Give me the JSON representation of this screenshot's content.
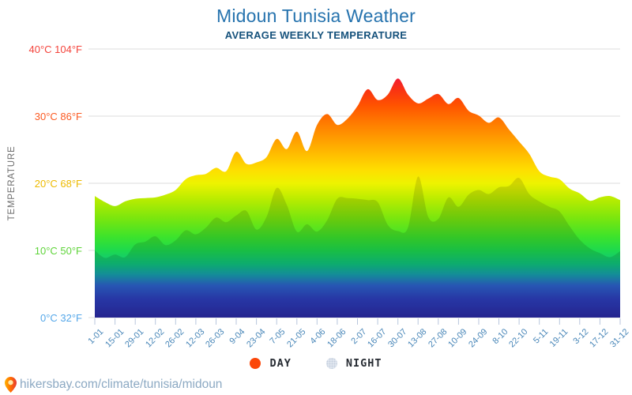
{
  "page": {
    "footer": {
      "url_text": "hikersbay.com/climate/tunisia/midoun"
    }
  },
  "chart_data": {
    "type": "area",
    "title": "Midoun Tunisia Weather",
    "subtitle": "AVERAGE WEEKLY TEMPERATURE",
    "ylabel": "TEMPERATURE",
    "ylim": [
      0,
      40
    ],
    "grid": true,
    "legend_position": "bottom",
    "legend": [
      {
        "label": "DAY",
        "color": "#fb4709"
      },
      {
        "label": "NIGHT",
        "color": "#e7ecf3"
      }
    ],
    "y_ticks": [
      {
        "value": 40,
        "label": "40°C 104°F",
        "color": "#f4433b"
      },
      {
        "value": 30,
        "label": "30°C 86°F",
        "color": "#fb5a22"
      },
      {
        "value": 20,
        "label": "20°C 68°F",
        "color": "#edba00"
      },
      {
        "value": 10,
        "label": "10°C 50°F",
        "color": "#5fd43a"
      },
      {
        "value": 0,
        "label": "0°C 32°F",
        "color": "#54a7e9"
      }
    ],
    "x_tick_labels": [
      "1-01",
      "15-01",
      "29-01",
      "12-02",
      "26-02",
      "12-03",
      "26-03",
      "9-04",
      "23-04",
      "7-05",
      "21-05",
      "4-06",
      "18-06",
      "2-07",
      "16-07",
      "30-07",
      "13-08",
      "27-08",
      "10-09",
      "24-09",
      "8-10",
      "22-10",
      "5-11",
      "19-11",
      "3-12",
      "17-12",
      "31-12"
    ],
    "x": [
      "1-01",
      "8-01",
      "15-01",
      "22-01",
      "29-01",
      "5-02",
      "12-02",
      "19-02",
      "26-02",
      "5-03",
      "12-03",
      "19-03",
      "26-03",
      "2-04",
      "9-04",
      "16-04",
      "23-04",
      "30-04",
      "7-05",
      "14-05",
      "21-05",
      "28-05",
      "4-06",
      "11-06",
      "18-06",
      "25-06",
      "2-07",
      "9-07",
      "16-07",
      "23-07",
      "30-07",
      "6-08",
      "13-08",
      "20-08",
      "27-08",
      "3-09",
      "10-09",
      "17-09",
      "24-09",
      "1-10",
      "8-10",
      "15-10",
      "22-10",
      "29-10",
      "5-11",
      "12-11",
      "19-11",
      "26-11",
      "3-12",
      "10-12",
      "17-12",
      "24-12",
      "31-12"
    ],
    "series": [
      {
        "name": "DAY",
        "values": [
          18.1,
          17.2,
          16.6,
          17.3,
          17.7,
          17.8,
          17.9,
          18.3,
          19.0,
          20.6,
          21.2,
          21.4,
          22.3,
          21.8,
          24.7,
          22.9,
          23.1,
          23.9,
          26.6,
          25.1,
          27.7,
          24.8,
          28.7,
          30.3,
          28.7,
          29.6,
          31.5,
          34.0,
          32.4,
          33.2,
          35.6,
          33.2,
          31.9,
          32.6,
          33.3,
          31.8,
          32.7,
          30.8,
          30.1,
          29.0,
          29.8,
          28.0,
          26.2,
          24.4,
          21.8,
          21.0,
          20.6,
          19.2,
          18.5,
          17.4,
          17.9,
          18.1,
          17.5
        ]
      },
      {
        "name": "NIGHT",
        "values": [
          10.0,
          8.9,
          9.4,
          9.0,
          10.9,
          11.3,
          12.1,
          10.8,
          11.5,
          13.0,
          12.4,
          13.4,
          14.9,
          14.2,
          15.2,
          15.9,
          13.1,
          15.0,
          19.3,
          16.8,
          12.8,
          13.9,
          12.8,
          14.5,
          17.7,
          17.8,
          17.7,
          17.5,
          17.2,
          13.8,
          12.9,
          13.4,
          21.0,
          15.0,
          14.7,
          17.9,
          16.5,
          18.3,
          19.0,
          18.4,
          19.4,
          19.6,
          20.8,
          18.4,
          17.3,
          16.5,
          15.8,
          13.6,
          11.6,
          10.3,
          9.6,
          9.0,
          9.9
        ]
      }
    ],
    "gradient_stops": [
      [
        0.0,
        "#2b2aa3"
      ],
      [
        0.07,
        "#2d3fbd"
      ],
      [
        0.12,
        "#2d63cc"
      ],
      [
        0.16,
        "#17a0ae"
      ],
      [
        0.2,
        "#0fc47e"
      ],
      [
        0.25,
        "#1dd94e"
      ],
      [
        0.3,
        "#3ce32c"
      ],
      [
        0.37,
        "#7ae60e"
      ],
      [
        0.44,
        "#b8ec00"
      ],
      [
        0.5,
        "#eef300"
      ],
      [
        0.55,
        "#fede00"
      ],
      [
        0.61,
        "#ffbc00"
      ],
      [
        0.67,
        "#ff9a00"
      ],
      [
        0.73,
        "#ff7800"
      ],
      [
        0.79,
        "#ff5300"
      ],
      [
        0.85,
        "#f93113"
      ],
      [
        0.9,
        "#f1173b"
      ],
      [
        1.0,
        "#e60f55"
      ]
    ]
  }
}
